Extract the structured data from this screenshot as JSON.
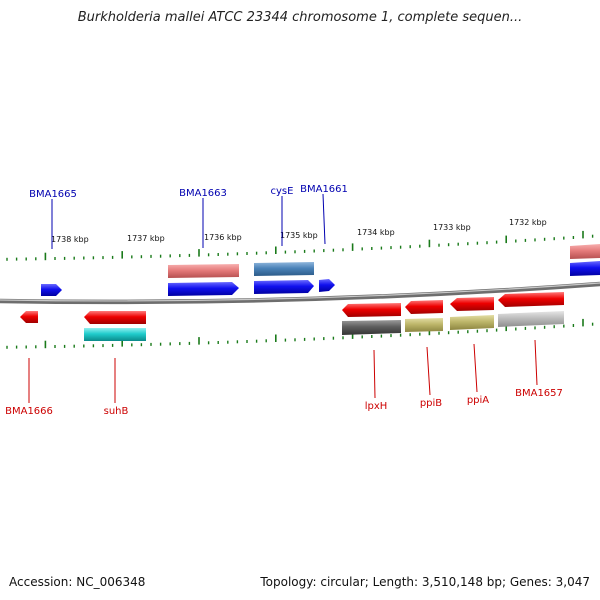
{
  "title": "Burkholderia mallei ATCC 23344 chromosome 1, complete sequen...",
  "accession": "Accession: NC_006348",
  "summary": "Topology: circular; Length: 3,510,148 bp; Genes: 3,047",
  "colors": {
    "backbone": "#8c8c8c",
    "tick": "#1a7a1a",
    "label_top": "#0000b0",
    "label_bottom": "#cc0000"
  },
  "kbp_labels": [
    "1738 kbp",
    "1737 kbp",
    "1736 kbp",
    "1735 kbp",
    "1734 kbp",
    "1733 kbp",
    "1732 kbp"
  ],
  "gene_labels_top": [
    "BMA1665",
    "BMA1663",
    "cysE",
    "BMA1661"
  ],
  "gene_labels_bottom": [
    "BMA1666",
    "suhB",
    "lpxH",
    "ppiB",
    "ppiA",
    "BMA1657"
  ]
}
